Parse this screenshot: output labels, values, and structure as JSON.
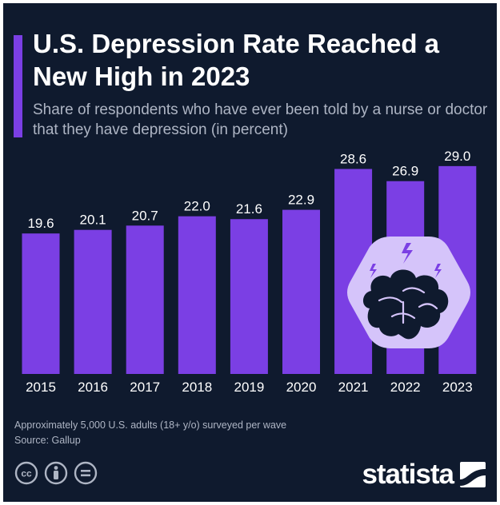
{
  "header": {
    "title": "U.S. Depression Rate Reached a New High in 2023",
    "subtitle": "Share of respondents who have ever been told by a nurse or doctor that they have depression (in percent)"
  },
  "chart_data": {
    "type": "bar",
    "categories": [
      "2015",
      "2016",
      "2017",
      "2018",
      "2019",
      "2020",
      "2021",
      "2022",
      "2023"
    ],
    "values": [
      19.6,
      20.1,
      20.7,
      22.0,
      21.6,
      22.9,
      28.6,
      26.9,
      29.0
    ],
    "value_labels": [
      "19.6",
      "20.1",
      "20.7",
      "22.0",
      "21.6",
      "22.9",
      "28.6",
      "26.9",
      "29.0"
    ],
    "ylim": [
      0,
      30
    ],
    "grid": false,
    "legend": "none",
    "bar_color": "#7b3fe4",
    "illustration": "brain-icon"
  },
  "footer": {
    "note": "Approximately 5,000 U.S. adults (18+ y/o) surveyed per wave",
    "source": "Source: Gallup",
    "license_icons": [
      "cc-icon",
      "attribution-icon",
      "no-derivatives-icon"
    ],
    "logo": "statista"
  },
  "colors": {
    "background": "#0f1a2e",
    "accent": "#7b3fe4",
    "text": "#ffffff",
    "muted_text": "#aeb5c4",
    "illustration_bg": "#d5c4fa"
  }
}
